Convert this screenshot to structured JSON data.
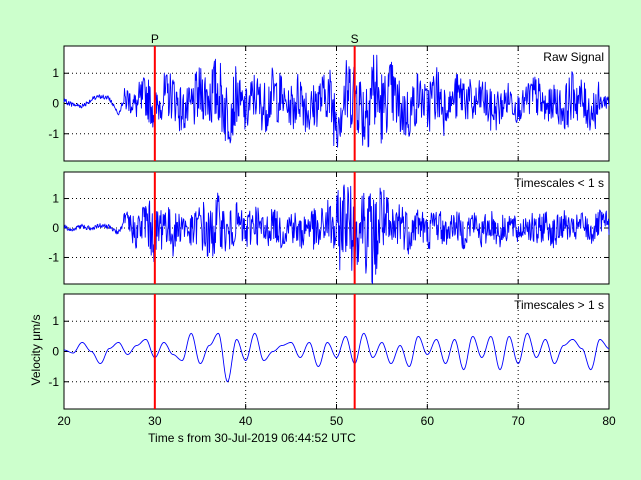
{
  "chart_data": {
    "type": "line",
    "xlabel": "Time s from 30-Jul-2019 06:44:52 UTC",
    "ylabel": "Velocity μm/s",
    "xlim": [
      20,
      80
    ],
    "x_ticks": [
      20,
      30,
      40,
      50,
      60,
      70,
      80
    ],
    "y_ticks": [
      -1,
      0,
      1
    ],
    "grid": true,
    "line_color": "#0000ff",
    "marker_color": "#ff0000",
    "background_color": "#ccffcc",
    "markers": [
      {
        "label": "P",
        "x": 30.0
      },
      {
        "label": "S",
        "x": 52.0
      }
    ],
    "panels": [
      {
        "title": "Raw Signal",
        "ylim": [
          -1.9,
          1.9
        ],
        "series": [
          {
            "x": [
              20,
              21,
              22,
              23,
              24,
              25,
              26,
              27,
              28,
              29,
              30,
              31,
              32,
              33,
              34,
              35,
              36,
              37,
              38,
              39,
              40,
              41,
              42,
              43,
              44,
              45,
              46,
              47,
              48,
              49,
              50,
              51,
              52,
              53,
              54,
              55,
              56,
              57,
              58,
              59,
              60,
              61,
              62,
              63,
              64,
              65,
              66,
              67,
              68,
              69,
              70,
              71,
              72,
              73,
              74,
              75,
              76,
              77,
              78,
              79,
              80
            ],
            "values": [
              0.1,
              -0.05,
              -0.1,
              0.15,
              0.3,
              0.2,
              -0.4,
              0.5,
              -0.3,
              0.8,
              -0.7,
              0.6,
              0.9,
              -0.8,
              -0.4,
              1.0,
              0.7,
              1.3,
              -1.2,
              0.6,
              -0.9,
              0.9,
              -0.5,
              1.0,
              0.4,
              -0.6,
              1.0,
              -0.9,
              0.3,
              0.9,
              -1.3,
              0.7,
              1.4,
              -1.0,
              1.8,
              -0.6,
              1.2,
              -0.8,
              -1.0,
              0.8,
              -0.3,
              1.1,
              -0.5,
              0.5,
              0.9,
              -0.4,
              0.7,
              -0.8,
              -0.4,
              0.6,
              -0.5,
              0.4,
              0.8,
              -0.6,
              0.3,
              -0.7,
              0.9,
              0.2,
              -0.8,
              0.1,
              0.3
            ]
          }
        ]
      },
      {
        "title": "Timescales < 1 s",
        "ylim": [
          -1.9,
          1.9
        ],
        "series": [
          {
            "x": [
              20,
              21,
              22,
              23,
              24,
              25,
              26,
              27,
              28,
              29,
              30,
              31,
              32,
              33,
              34,
              35,
              36,
              37,
              38,
              39,
              40,
              41,
              42,
              43,
              44,
              45,
              46,
              47,
              48,
              49,
              50,
              51,
              52,
              53,
              54,
              55,
              56,
              57,
              58,
              59,
              60,
              61,
              62,
              63,
              64,
              65,
              66,
              67,
              68,
              69,
              70,
              71,
              72,
              73,
              74,
              75,
              76,
              77,
              78,
              79,
              80
            ],
            "values": [
              0.05,
              -0.1,
              0.1,
              -0.05,
              0.1,
              0.05,
              -0.2,
              0.5,
              -0.6,
              0.9,
              -1.0,
              0.8,
              -0.7,
              0.5,
              -0.6,
              0.7,
              -1.1,
              0.9,
              -0.8,
              0.7,
              -0.6,
              0.8,
              -0.7,
              0.6,
              -0.6,
              0.5,
              -0.7,
              0.6,
              -0.8,
              0.9,
              -0.9,
              1.6,
              -1.2,
              1.2,
              -1.9,
              1.3,
              -1.1,
              0.9,
              -0.6,
              0.7,
              -0.6,
              0.7,
              -0.5,
              0.5,
              -0.6,
              0.6,
              -0.6,
              0.5,
              -0.6,
              0.5,
              -0.5,
              0.5,
              -0.6,
              0.5,
              -0.6,
              0.5,
              -0.4,
              0.5,
              -0.5,
              0.5,
              0.3
            ]
          }
        ]
      },
      {
        "title": "Timescales > 1 s",
        "ylim": [
          -1.9,
          1.9
        ],
        "series": [
          {
            "x": [
              20,
              21,
              22,
              23,
              24,
              25,
              26,
              27,
              28,
              29,
              30,
              31,
              32,
              33,
              34,
              35,
              36,
              37,
              38,
              39,
              40,
              41,
              42,
              43,
              44,
              45,
              46,
              47,
              48,
              49,
              50,
              51,
              52,
              53,
              54,
              55,
              56,
              57,
              58,
              59,
              60,
              61,
              62,
              63,
              64,
              65,
              66,
              67,
              68,
              69,
              70,
              71,
              72,
              73,
              74,
              75,
              76,
              77,
              78,
              79,
              80
            ],
            "values": [
              0.05,
              -0.05,
              0.3,
              0.0,
              -0.4,
              0.1,
              0.3,
              -0.1,
              0.2,
              0.4,
              -0.2,
              0.3,
              -0.1,
              -0.3,
              0.6,
              -0.4,
              0.2,
              0.6,
              -1.0,
              0.4,
              -0.3,
              0.6,
              -0.3,
              0.0,
              0.2,
              0.3,
              -0.2,
              0.3,
              -0.5,
              0.3,
              -0.2,
              0.5,
              -0.4,
              0.6,
              -0.2,
              0.3,
              -0.4,
              0.2,
              -0.5,
              0.5,
              -0.1,
              0.4,
              -0.4,
              0.4,
              -0.6,
              0.5,
              -0.2,
              0.5,
              -0.6,
              0.5,
              -0.4,
              0.6,
              -0.2,
              0.4,
              -0.4,
              0.2,
              0.4,
              0.1,
              -0.6,
              0.4,
              0.1
            ]
          }
        ]
      }
    ]
  }
}
